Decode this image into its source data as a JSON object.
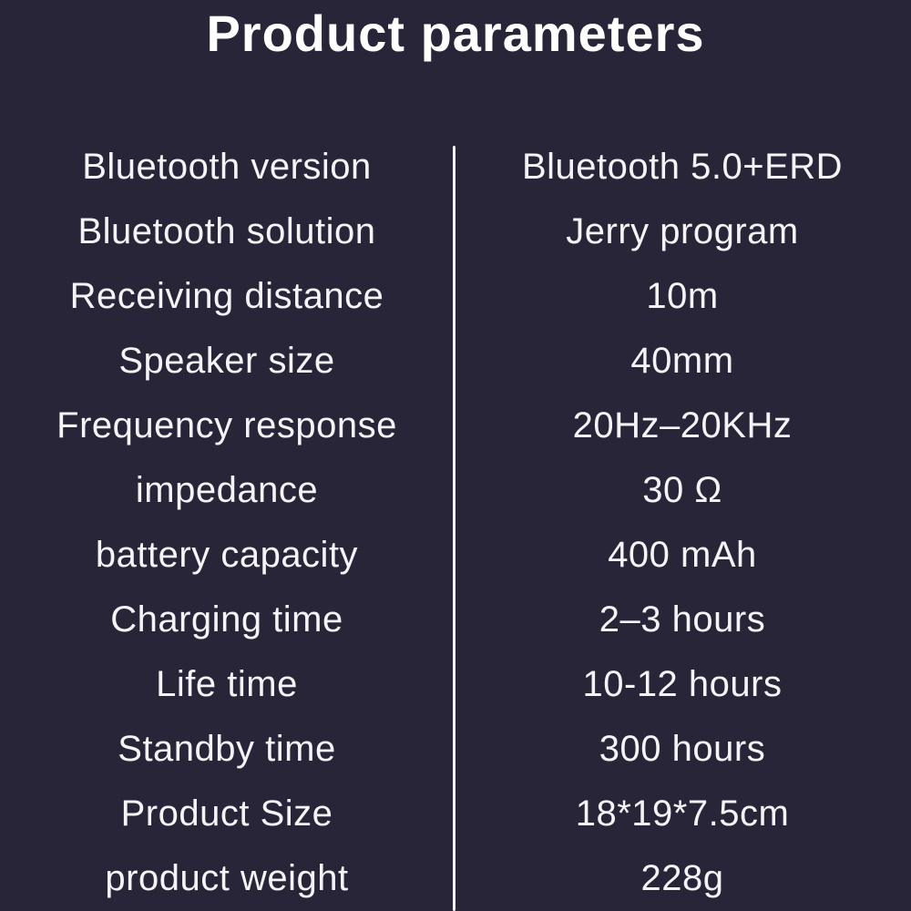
{
  "title": "Product parameters",
  "colors": {
    "background": "#282539",
    "text": "#f4f4f6",
    "divider": "#f2f2f2"
  },
  "table": {
    "rows": [
      {
        "label": "Bluetooth version",
        "value": "Bluetooth 5.0+ERD"
      },
      {
        "label": "Bluetooth solution",
        "value": "Jerry program"
      },
      {
        "label": "Receiving distance",
        "value": "10m"
      },
      {
        "label": "Speaker size",
        "value": "40mm"
      },
      {
        "label": "Frequency response",
        "value": "20Hz–20KHz"
      },
      {
        "label": "impedance",
        "value": "30 Ω"
      },
      {
        "label": "battery capacity",
        "value": "400 mAh"
      },
      {
        "label": "Charging time",
        "value": "2–3 hours"
      },
      {
        "label": "Life time",
        "value": "10-12 hours"
      },
      {
        "label": "Standby time",
        "value": "300 hours"
      },
      {
        "label": "Product Size",
        "value": "18*19*7.5cm"
      },
      {
        "label": "product weight",
        "value": "228g"
      }
    ]
  }
}
